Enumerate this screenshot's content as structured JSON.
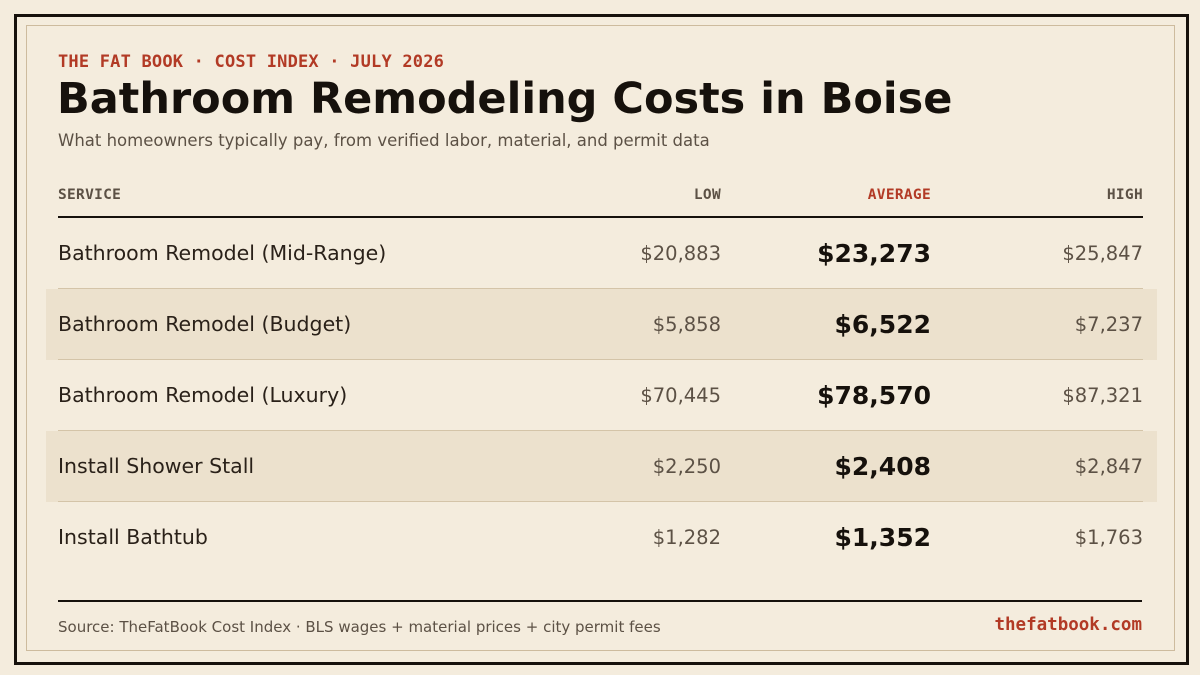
{
  "header": {
    "kicker": "THE FAT BOOK · COST INDEX · JULY 2026",
    "title": "Bathroom Remodeling Costs in Boise",
    "subtitle": "What homeowners typically pay, from verified labor, material, and permit data"
  },
  "colors": {
    "background": "#f4ecdd",
    "accent": "#b23a25",
    "ink": "#16110c",
    "row_alt": "#ece1cd"
  },
  "chart_data": {
    "type": "table",
    "columns": [
      "SERVICE",
      "LOW",
      "AVERAGE",
      "HIGH"
    ],
    "rows": [
      {
        "service": "Bathroom Remodel (Mid-Range)",
        "low": "$20,883",
        "average": "$23,273",
        "high": "$25,847"
      },
      {
        "service": "Bathroom Remodel (Budget)",
        "low": "$5,858",
        "average": "$6,522",
        "high": "$7,237"
      },
      {
        "service": "Bathroom Remodel (Luxury)",
        "low": "$70,445",
        "average": "$78,570",
        "high": "$87,321"
      },
      {
        "service": "Install Shower Stall",
        "low": "$2,250",
        "average": "$2,408",
        "high": "$2,847"
      },
      {
        "service": "Install Bathtub",
        "low": "$1,282",
        "average": "$1,352",
        "high": "$1,763"
      }
    ]
  },
  "footer": {
    "source": "Source: TheFatBook Cost Index · BLS wages + material prices + city permit fees",
    "brand": "thefatbook.com"
  }
}
